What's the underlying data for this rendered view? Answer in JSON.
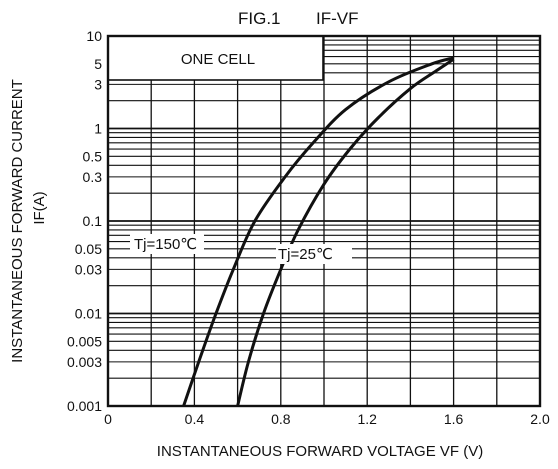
{
  "chart_data": {
    "type": "line",
    "title": "FIG.1",
    "title_rhs": "IF-VF",
    "xlabel": "INSTANTANEOUS FORWARD VOLTAGE VF (V)",
    "ylabel_line1": "INSTANTANEOUS   FORWARD  CURRENT",
    "ylabel_line2": "IF(A)",
    "x_scale": "linear",
    "y_scale": "log",
    "xlim": [
      0,
      2.0
    ],
    "ylim": [
      0.001,
      10
    ],
    "x_ticks": [
      0,
      0.4,
      0.8,
      1.2,
      1.6,
      2.0
    ],
    "x_tick_labels": [
      "0",
      "0.4",
      "0.8",
      "1.2",
      "1.6",
      "2.0"
    ],
    "y_ticks": [
      10,
      5,
      3,
      1,
      0.5,
      0.3,
      0.1,
      0.05,
      0.03,
      0.01,
      0.005,
      0.003,
      0.001
    ],
    "y_tick_labels": [
      "10",
      "5",
      "3",
      "1",
      "0.5",
      "0.3",
      "0.1",
      "0.05",
      "0.03",
      "0.01",
      "0.005",
      "0.003",
      "0.001"
    ],
    "grid": true,
    "legend_box": "ONE CELL",
    "series": [
      {
        "name": "Tj=150℃",
        "points": [
          [
            0.35,
            0.001
          ],
          [
            0.42,
            0.003
          ],
          [
            0.5,
            0.01
          ],
          [
            0.58,
            0.03
          ],
          [
            0.68,
            0.1
          ],
          [
            0.82,
            0.3
          ],
          [
            0.95,
            0.7
          ],
          [
            1.1,
            1.6
          ],
          [
            1.3,
            3.2
          ],
          [
            1.5,
            5.0
          ],
          [
            1.6,
            5.8
          ]
        ]
      },
      {
        "name": "Tj=25℃",
        "points": [
          [
            0.6,
            0.001
          ],
          [
            0.65,
            0.003
          ],
          [
            0.72,
            0.01
          ],
          [
            0.8,
            0.03
          ],
          [
            0.88,
            0.08
          ],
          [
            1.0,
            0.25
          ],
          [
            1.12,
            0.6
          ],
          [
            1.25,
            1.3
          ],
          [
            1.4,
            2.7
          ],
          [
            1.52,
            4.2
          ],
          [
            1.6,
            5.6
          ]
        ]
      }
    ],
    "annotations": [
      "Tj=150℃",
      "Tj=25℃"
    ],
    "colors": {
      "ink": "#111111",
      "background": "#ffffff"
    }
  }
}
